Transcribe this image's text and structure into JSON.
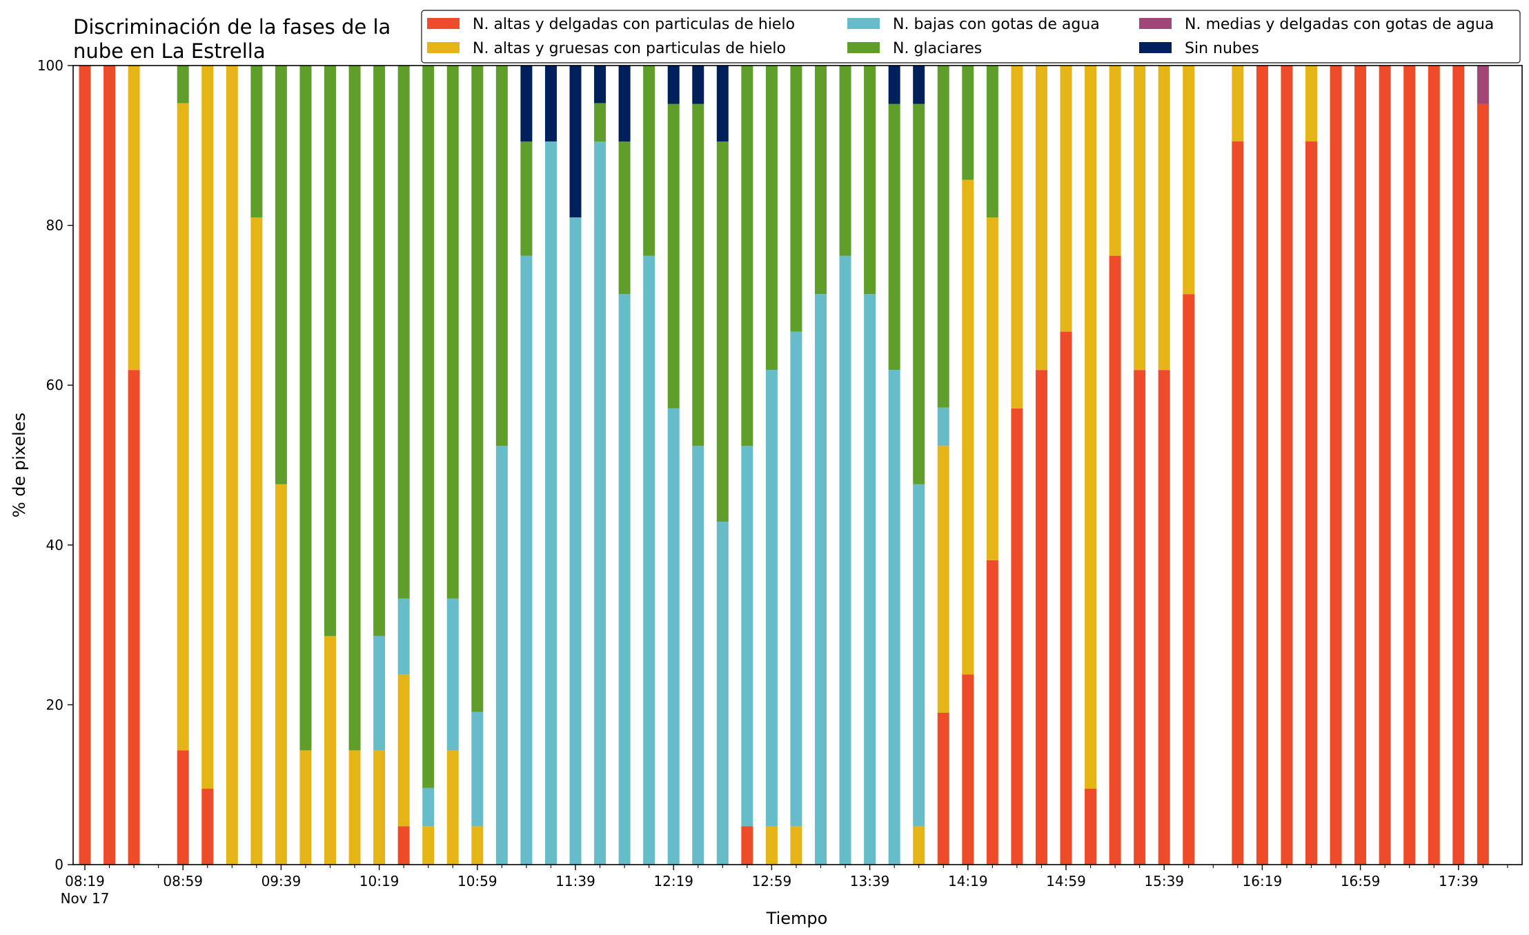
{
  "chart_data": {
    "type": "bar",
    "stacked": true,
    "title": "Discriminación de la fases de la nube en La Estrella",
    "title_lines": [
      "Discriminación de la fases de la",
      "nube en La Estrella"
    ],
    "xlabel": "Tiempo",
    "ylabel": "% de pixeles",
    "ylim": [
      0,
      100
    ],
    "yticks": [
      0,
      20,
      40,
      60,
      80,
      100
    ],
    "x_tick_labels": [
      "08:19",
      "08:59",
      "09:39",
      "10:19",
      "10:59",
      "11:39",
      "12:19",
      "12:59",
      "13:39",
      "14:19",
      "14:59",
      "15:39",
      "16:19",
      "16:59",
      "17:39"
    ],
    "x_date_label": "Nov 17",
    "slot_minutes": 10,
    "first_time": "08:19",
    "legend_position": "top-right",
    "series": [
      {
        "key": "altas_delgadas",
        "name": "N. altas y delgadas con particulas de hielo",
        "color": "#EE4B2B"
      },
      {
        "key": "altas_gruesas",
        "name": "N. altas y gruesas con particulas de hielo",
        "color": "#E5B517"
      },
      {
        "key": "bajas",
        "name": "N. bajas con gotas de agua",
        "color": "#66BDC9"
      },
      {
        "key": "glaciares",
        "name": "N. glaciares",
        "color": "#5F9E2B"
      },
      {
        "key": "medias",
        "name": "N. medias y delgadas con gotas de agua",
        "color": "#A24577"
      },
      {
        "key": "sin_nubes",
        "name": "Sin nubes",
        "color": "#00205B"
      }
    ],
    "legend_order": [
      "altas_delgadas",
      "altas_gruesas",
      "bajas",
      "glaciares",
      "medias",
      "sin_nubes"
    ],
    "stack_order": [
      "altas_delgadas",
      "altas_gruesas",
      "bajas",
      "glaciares",
      "medias",
      "sin_nubes"
    ],
    "bars": [
      {
        "time": "08:19",
        "altas_delgadas": 100
      },
      {
        "time": "08:29",
        "altas_delgadas": 100
      },
      {
        "time": "08:39",
        "altas_delgadas": 61.9,
        "altas_gruesas": 38.1
      },
      {
        "time": "08:59",
        "altas_delgadas": 14.3,
        "altas_gruesas": 81.0,
        "glaciares": 4.7
      },
      {
        "time": "09:09",
        "altas_delgadas": 9.5,
        "altas_gruesas": 90.5
      },
      {
        "time": "09:19",
        "altas_gruesas": 100
      },
      {
        "time": "09:29",
        "altas_gruesas": 81.0,
        "glaciares": 19.0
      },
      {
        "time": "09:39",
        "altas_gruesas": 47.6,
        "glaciares": 52.4
      },
      {
        "time": "09:49",
        "altas_gruesas": 14.3,
        "glaciares": 85.7
      },
      {
        "time": "09:59",
        "altas_gruesas": 28.6,
        "glaciares": 71.4
      },
      {
        "time": "10:09",
        "altas_gruesas": 14.3,
        "glaciares": 85.7
      },
      {
        "time": "10:19",
        "altas_gruesas": 14.3,
        "bajas": 14.3,
        "glaciares": 71.4
      },
      {
        "time": "10:29",
        "altas_delgadas": 4.8,
        "altas_gruesas": 19.0,
        "bajas": 9.5,
        "glaciares": 66.7
      },
      {
        "time": "10:39",
        "altas_gruesas": 4.8,
        "bajas": 4.8,
        "glaciares": 90.4
      },
      {
        "time": "10:49",
        "altas_gruesas": 14.3,
        "bajas": 19.0,
        "glaciares": 66.7
      },
      {
        "time": "10:59",
        "altas_gruesas": 4.8,
        "bajas": 14.3,
        "glaciares": 80.9
      },
      {
        "time": "11:09",
        "bajas": 52.4,
        "glaciares": 47.6
      },
      {
        "time": "11:19",
        "bajas": 76.2,
        "glaciares": 14.3,
        "sin_nubes": 9.5
      },
      {
        "time": "11:29",
        "bajas": 90.5,
        "sin_nubes": 9.5
      },
      {
        "time": "11:39",
        "bajas": 81.0,
        "sin_nubes": 19.0
      },
      {
        "time": "11:49",
        "bajas": 90.5,
        "glaciares": 4.8,
        "sin_nubes": 4.7
      },
      {
        "time": "11:59",
        "bajas": 71.4,
        "glaciares": 19.1,
        "sin_nubes": 9.5
      },
      {
        "time": "12:09",
        "bajas": 76.2,
        "glaciares": 23.8
      },
      {
        "time": "12:19",
        "bajas": 57.1,
        "glaciares": 38.1,
        "sin_nubes": 4.8
      },
      {
        "time": "12:29",
        "bajas": 52.4,
        "glaciares": 42.8,
        "sin_nubes": 4.8
      },
      {
        "time": "12:39",
        "bajas": 42.9,
        "glaciares": 47.6,
        "sin_nubes": 9.5
      },
      {
        "time": "12:49",
        "altas_delgadas": 4.8,
        "bajas": 47.6,
        "glaciares": 47.6
      },
      {
        "time": "12:59",
        "altas_gruesas": 4.8,
        "bajas": 57.1,
        "glaciares": 38.1
      },
      {
        "time": "13:09",
        "altas_gruesas": 4.8,
        "bajas": 61.9,
        "glaciares": 33.3
      },
      {
        "time": "13:19",
        "bajas": 71.4,
        "glaciares": 28.6
      },
      {
        "time": "13:29",
        "bajas": 76.2,
        "glaciares": 23.8
      },
      {
        "time": "13:39",
        "bajas": 71.4,
        "glaciares": 28.6
      },
      {
        "time": "13:49",
        "bajas": 61.9,
        "glaciares": 33.3,
        "sin_nubes": 4.8
      },
      {
        "time": "13:59",
        "altas_gruesas": 4.8,
        "bajas": 42.8,
        "glaciares": 47.6,
        "sin_nubes": 4.8
      },
      {
        "time": "14:09",
        "altas_delgadas": 19.0,
        "altas_gruesas": 33.4,
        "bajas": 4.8,
        "glaciares": 42.8
      },
      {
        "time": "14:19",
        "altas_delgadas": 23.8,
        "altas_gruesas": 61.9,
        "glaciares": 14.3
      },
      {
        "time": "14:29",
        "altas_delgadas": 38.1,
        "altas_gruesas": 42.9,
        "glaciares": 19.0
      },
      {
        "time": "14:39",
        "altas_delgadas": 57.1,
        "altas_gruesas": 42.9
      },
      {
        "time": "14:49",
        "altas_delgadas": 61.9,
        "altas_gruesas": 38.1
      },
      {
        "time": "14:59",
        "altas_delgadas": 66.7,
        "altas_gruesas": 33.3
      },
      {
        "time": "15:09",
        "altas_delgadas": 9.5,
        "altas_gruesas": 90.5
      },
      {
        "time": "15:19",
        "altas_delgadas": 76.2,
        "altas_gruesas": 23.8
      },
      {
        "time": "15:29",
        "altas_delgadas": 61.9,
        "altas_gruesas": 38.1
      },
      {
        "time": "15:39",
        "altas_delgadas": 61.9,
        "altas_gruesas": 38.1
      },
      {
        "time": "15:49",
        "altas_delgadas": 71.4,
        "altas_gruesas": 28.6
      },
      {
        "time": "16:09",
        "altas_delgadas": 90.5,
        "altas_gruesas": 9.5
      },
      {
        "time": "16:19",
        "altas_delgadas": 100
      },
      {
        "time": "16:29",
        "altas_delgadas": 100
      },
      {
        "time": "16:39",
        "altas_delgadas": 90.5,
        "altas_gruesas": 9.5
      },
      {
        "time": "16:49",
        "altas_delgadas": 100
      },
      {
        "time": "16:59",
        "altas_delgadas": 100
      },
      {
        "time": "17:09",
        "altas_delgadas": 100
      },
      {
        "time": "17:19",
        "altas_delgadas": 100
      },
      {
        "time": "17:29",
        "altas_delgadas": 100
      },
      {
        "time": "17:39",
        "altas_delgadas": 100
      },
      {
        "time": "17:49",
        "altas_delgadas": 95.2,
        "medias": 4.8
      }
    ]
  }
}
